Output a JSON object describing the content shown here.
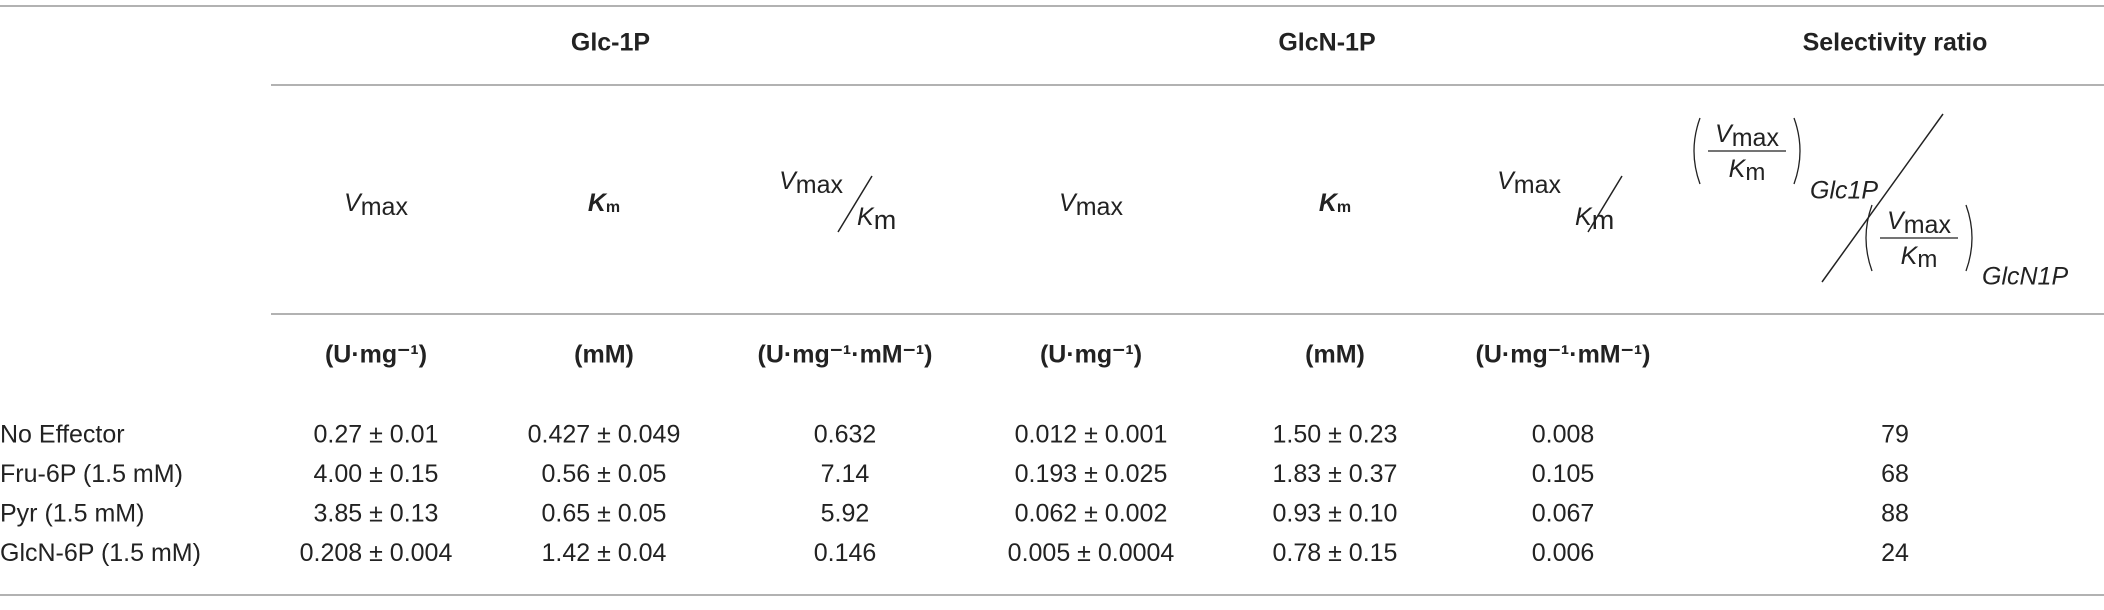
{
  "table": {
    "groups": [
      "Glc-1P",
      "GlcN-1P",
      "Selectivity ratio"
    ],
    "symbols": {
      "v": "V",
      "max": "max",
      "k": "K",
      "m": "m",
      "glc": "Glc1P",
      "glcn": "GlcN1P"
    },
    "units": [
      "(U·mg⁻¹)",
      "(mM)",
      "(U·mg⁻¹·mM⁻¹)",
      "(U·mg⁻¹)",
      "(mM)",
      "(U·mg⁻¹·mM⁻¹)"
    ],
    "rows": [
      [
        "No Effector",
        "0.27 ± 0.01",
        "0.427 ± 0.049",
        "0.632",
        "0.012 ± 0.001",
        "1.50 ± 0.23",
        "0.008",
        "79"
      ],
      [
        "Fru-6P (1.5 mM)",
        "4.00 ± 0.15",
        "0.56 ± 0.05",
        "7.14",
        "0.193 ± 0.025",
        "1.83 ± 0.37",
        "0.105",
        "68"
      ],
      [
        "Pyr (1.5 mM)",
        "3.85 ± 0.13",
        "0.65 ± 0.05",
        "5.92",
        "0.062 ± 0.002",
        "0.93 ± 0.10",
        "0.067",
        "88"
      ],
      [
        "GlcN-6P (1.5 mM)",
        "0.208 ± 0.004",
        "1.42 ± 0.04",
        "0.146",
        "0.005 ± 0.0004",
        "0.78 ± 0.15",
        "0.006",
        "24"
      ]
    ]
  }
}
